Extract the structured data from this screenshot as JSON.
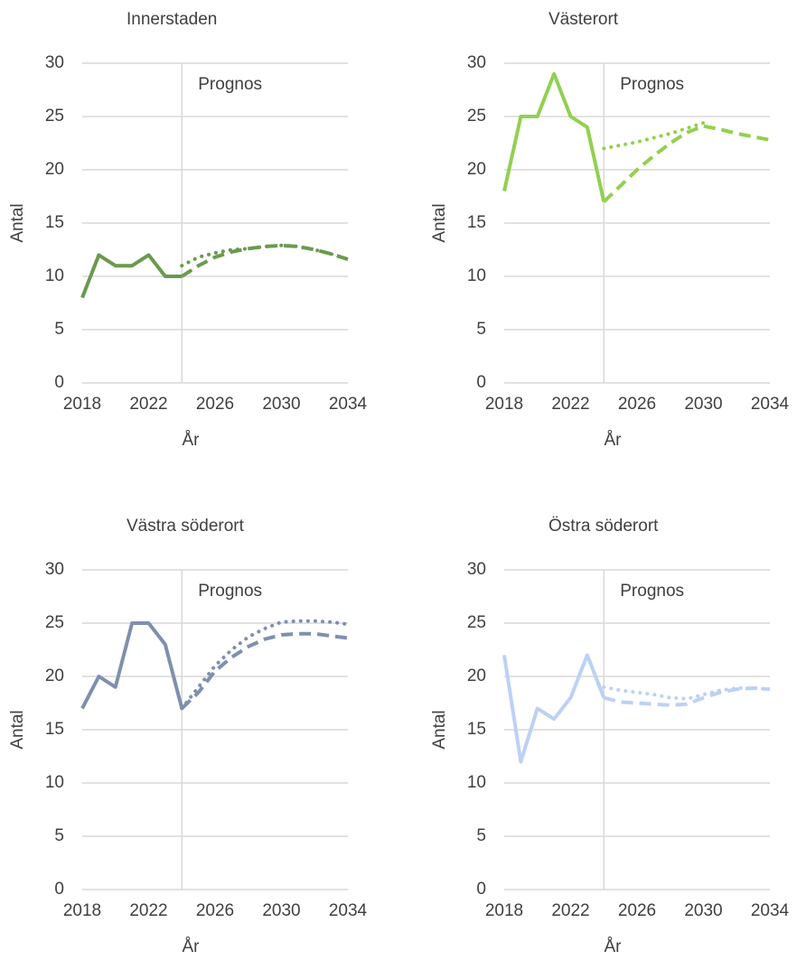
{
  "chart_data": [
    {
      "type": "line",
      "title": "Innerstaden",
      "x_label": "År",
      "y_label": "Antal",
      "annotation": "Prognos",
      "forecast_start": 2024,
      "xlim": [
        2018,
        2034
      ],
      "xticks": [
        2018,
        2022,
        2026,
        2030,
        2034
      ],
      "ylim": [
        0,
        30
      ],
      "yticks": [
        0,
        5,
        10,
        15,
        20,
        25,
        30
      ],
      "grid": true,
      "series": [
        {
          "color": "#6a9a4e",
          "dash": "solid",
          "x": [
            2018,
            2019,
            2020,
            2021,
            2022,
            2023,
            2024
          ],
          "values": [
            8,
            12,
            11,
            11,
            12,
            10,
            10
          ]
        },
        {
          "color": "#6a9a4e",
          "dash": "dashed",
          "x": [
            2024,
            2025,
            2026,
            2027,
            2028,
            2029,
            2030,
            2031,
            2032,
            2033,
            2034
          ],
          "values": [
            10,
            11,
            11.8,
            12.3,
            12.6,
            12.8,
            12.9,
            12.8,
            12.5,
            12.1,
            11.6
          ]
        },
        {
          "color": "#6a9a4e",
          "dash": "dotted",
          "x": [
            2024,
            2025,
            2026,
            2027,
            2028,
            2029,
            2030,
            2031,
            2032,
            2033,
            2034
          ],
          "values": [
            11,
            11.8,
            12.2,
            12.5,
            12.6,
            12.8,
            12.9,
            12.8,
            12.5,
            12.1,
            11.6
          ]
        }
      ]
    },
    {
      "type": "line",
      "title": "Västerort",
      "x_label": "År",
      "y_label": "Antal",
      "annotation": "Prognos",
      "forecast_start": 2024,
      "xlim": [
        2018,
        2034
      ],
      "xticks": [
        2018,
        2022,
        2026,
        2030,
        2034
      ],
      "ylim": [
        0,
        30
      ],
      "yticks": [
        0,
        5,
        10,
        15,
        20,
        25,
        30
      ],
      "grid": true,
      "series": [
        {
          "color": "#92d050",
          "dash": "solid",
          "x": [
            2018,
            2019,
            2020,
            2021,
            2022,
            2023,
            2024
          ],
          "values": [
            18,
            25,
            25,
            29,
            25,
            24,
            17
          ]
        },
        {
          "color": "#92d050",
          "dash": "dashed",
          "x": [
            2024,
            2025,
            2026,
            2027,
            2028,
            2029,
            2030,
            2031,
            2032,
            2033,
            2034
          ],
          "values": [
            17,
            18.5,
            20,
            21.3,
            22.5,
            23.5,
            24.1,
            23.8,
            23.4,
            23.1,
            22.8
          ]
        },
        {
          "color": "#92d050",
          "dash": "dotted",
          "x": [
            2024,
            2025,
            2026,
            2027,
            2028,
            2029,
            2030
          ],
          "values": [
            22,
            22.3,
            22.6,
            23,
            23.4,
            23.9,
            24.4
          ]
        }
      ]
    },
    {
      "type": "line",
      "title": "Västra söderort",
      "x_label": "År",
      "y_label": "Antal",
      "annotation": "Prognos",
      "forecast_start": 2024,
      "xlim": [
        2018,
        2034
      ],
      "xticks": [
        2018,
        2022,
        2026,
        2030,
        2034
      ],
      "ylim": [
        0,
        30
      ],
      "yticks": [
        0,
        5,
        10,
        15,
        20,
        25,
        30
      ],
      "grid": true,
      "series": [
        {
          "color": "#7f8fae",
          "dash": "solid",
          "x": [
            2018,
            2019,
            2020,
            2021,
            2022,
            2023,
            2024
          ],
          "values": [
            17,
            20,
            19,
            25,
            25,
            23,
            17
          ]
        },
        {
          "color": "#7f8fae",
          "dash": "dashed",
          "x": [
            2024,
            2025,
            2026,
            2027,
            2028,
            2029,
            2030,
            2031,
            2032,
            2033,
            2034
          ],
          "values": [
            17,
            18.5,
            20.5,
            21.8,
            22.8,
            23.5,
            23.9,
            24,
            24,
            23.8,
            23.6
          ]
        },
        {
          "color": "#7f8fae",
          "dash": "dotted",
          "x": [
            2024,
            2025,
            2026,
            2027,
            2028,
            2029,
            2030,
            2031,
            2032,
            2033,
            2034
          ],
          "values": [
            17,
            19,
            21,
            22.5,
            23.7,
            24.5,
            25.1,
            25.2,
            25.2,
            25.1,
            24.9
          ]
        }
      ]
    },
    {
      "type": "line",
      "title": "Östra söderort",
      "x_label": "År",
      "y_label": "Antal",
      "annotation": "Prognos",
      "forecast_start": 2024,
      "xlim": [
        2018,
        2034
      ],
      "xticks": [
        2018,
        2022,
        2026,
        2030,
        2034
      ],
      "ylim": [
        0,
        30
      ],
      "yticks": [
        0,
        5,
        10,
        15,
        20,
        25,
        30
      ],
      "grid": true,
      "series": [
        {
          "color": "#bdd1f5",
          "dash": "solid",
          "x": [
            2018,
            2019,
            2020,
            2021,
            2022,
            2023,
            2024
          ],
          "values": [
            22,
            12,
            17,
            16,
            18,
            22,
            18
          ]
        },
        {
          "color": "#bdd1f5",
          "dash": "dashed",
          "x": [
            2024,
            2025,
            2026,
            2027,
            2028,
            2029,
            2030,
            2031,
            2032,
            2033,
            2034
          ],
          "values": [
            18,
            17.6,
            17.5,
            17.4,
            17.3,
            17.4,
            18,
            18.5,
            18.8,
            18.9,
            18.8
          ]
        },
        {
          "color": "#bdd1f5",
          "dash": "dotted",
          "x": [
            2024,
            2025,
            2026,
            2027,
            2028,
            2029,
            2030,
            2031,
            2032,
            2033,
            2034
          ],
          "values": [
            19,
            18.7,
            18.5,
            18.3,
            18,
            17.9,
            18.3,
            18.7,
            18.9,
            18.9,
            18.8
          ]
        }
      ]
    }
  ]
}
